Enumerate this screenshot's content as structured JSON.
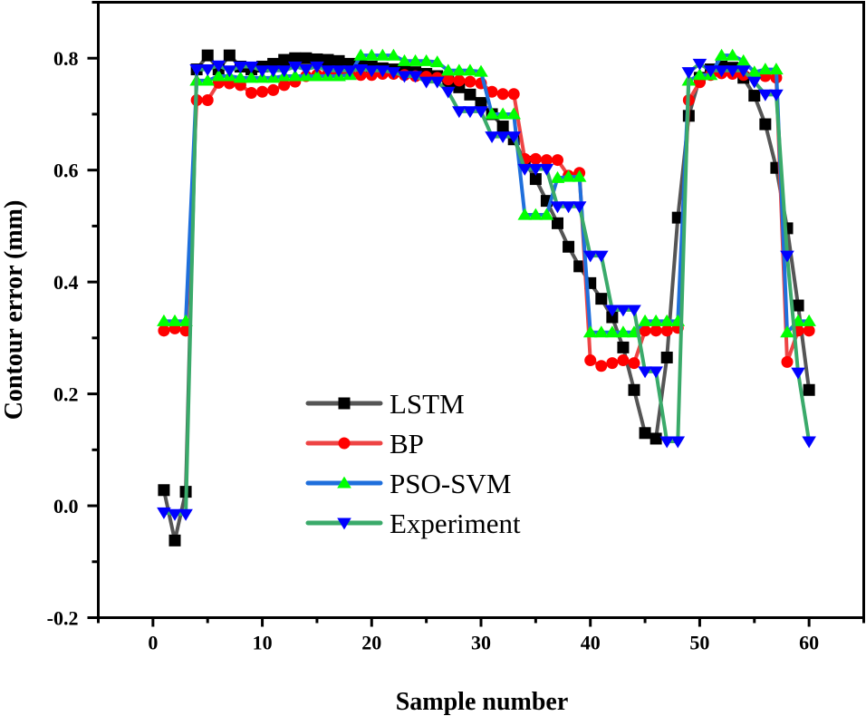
{
  "chart_data": {
    "type": "line",
    "title": "",
    "xlabel": "Sample number",
    "ylabel": "Contour error (mm)",
    "xlim": [
      -5,
      65
    ],
    "ylim": [
      -0.2,
      0.9
    ],
    "xticks": [
      0,
      10,
      20,
      30,
      40,
      50,
      60
    ],
    "xtick_labels": [
      "0",
      "10",
      "20",
      "30",
      "40",
      "50",
      "60"
    ],
    "yticks": [
      -0.2,
      0.0,
      0.2,
      0.4,
      0.6,
      0.8
    ],
    "ytick_labels": [
      "-0.2",
      "0.0",
      "0.2",
      "0.4",
      "0.6",
      "0.8"
    ],
    "grid": false,
    "legend_position": "lower-center",
    "x": [
      1,
      2,
      3,
      4,
      5,
      6,
      7,
      8,
      9,
      10,
      11,
      12,
      13,
      14,
      15,
      16,
      17,
      18,
      19,
      20,
      21,
      22,
      23,
      24,
      25,
      26,
      27,
      28,
      29,
      30,
      31,
      32,
      33,
      34,
      35,
      36,
      37,
      38,
      39,
      40,
      41,
      42,
      43,
      44,
      45,
      46,
      47,
      48,
      49,
      50,
      51,
      52,
      53,
      54,
      55,
      56,
      57,
      58,
      59,
      60
    ],
    "series": [
      {
        "name": "LSTM",
        "line_color": "#555555",
        "marker_color": "#000000",
        "marker": "square",
        "values": [
          0.028,
          -0.062,
          0.025,
          0.78,
          0.805,
          0.78,
          0.805,
          0.785,
          0.78,
          0.785,
          0.79,
          0.797,
          0.8,
          0.8,
          0.798,
          0.797,
          0.795,
          0.79,
          0.787,
          0.785,
          0.782,
          0.78,
          0.778,
          0.775,
          0.772,
          0.768,
          0.758,
          0.748,
          0.735,
          0.72,
          0.7,
          0.678,
          0.655,
          0.615,
          0.584,
          0.545,
          0.505,
          0.463,
          0.428,
          0.398,
          0.37,
          0.337,
          0.283,
          0.207,
          0.13,
          0.12,
          0.265,
          0.515,
          0.697,
          0.765,
          0.78,
          0.785,
          0.783,
          0.765,
          0.733,
          0.682,
          0.604,
          0.496,
          0.358,
          0.207
        ]
      },
      {
        "name": "BP",
        "line_color": "#ee4444",
        "marker_color": "#ff0000",
        "marker": "circle",
        "values": [
          0.313,
          0.317,
          0.313,
          0.725,
          0.725,
          0.756,
          0.755,
          0.752,
          0.738,
          0.74,
          0.743,
          0.752,
          0.758,
          0.768,
          0.77,
          0.772,
          0.773,
          0.772,
          0.77,
          0.77,
          0.772,
          0.772,
          0.77,
          0.768,
          0.767,
          0.765,
          0.762,
          0.76,
          0.758,
          0.755,
          0.74,
          0.736,
          0.736,
          0.62,
          0.62,
          0.618,
          0.618,
          0.59,
          0.595,
          0.26,
          0.25,
          0.255,
          0.26,
          0.255,
          0.313,
          0.313,
          0.313,
          0.318,
          0.725,
          0.757,
          0.77,
          0.773,
          0.772,
          0.77,
          0.768,
          0.768,
          0.765,
          0.257,
          0.313,
          0.313
        ]
      },
      {
        "name": "PSO-SVM",
        "line_color": "#1f6fdc",
        "marker_color": "#00ff00",
        "marker": "triangle-up",
        "values": [
          0.33,
          0.33,
          0.33,
          0.76,
          0.76,
          0.768,
          0.768,
          0.765,
          0.765,
          0.765,
          0.765,
          0.768,
          0.768,
          0.768,
          0.768,
          0.768,
          0.768,
          0.77,
          0.805,
          0.805,
          0.805,
          0.805,
          0.795,
          0.795,
          0.795,
          0.793,
          0.778,
          0.778,
          0.778,
          0.776,
          0.7,
          0.7,
          0.7,
          0.52,
          0.52,
          0.52,
          0.586,
          0.588,
          0.588,
          0.31,
          0.31,
          0.31,
          0.31,
          0.31,
          0.33,
          0.33,
          0.33,
          0.33,
          0.76,
          0.77,
          0.77,
          0.805,
          0.805,
          0.795,
          0.775,
          0.78,
          0.78,
          0.31,
          0.33,
          0.33
        ]
      },
      {
        "name": "Experiment",
        "line_color": "#3aaa6a",
        "marker_color": "#0000ff",
        "marker": "triangle-down",
        "values": [
          -0.012,
          -0.015,
          -0.015,
          0.78,
          0.78,
          0.787,
          0.778,
          0.785,
          0.785,
          0.778,
          0.778,
          0.778,
          0.785,
          0.78,
          0.785,
          0.778,
          0.778,
          0.778,
          0.78,
          0.778,
          0.778,
          0.775,
          0.768,
          0.768,
          0.758,
          0.758,
          0.74,
          0.705,
          0.705,
          0.705,
          0.66,
          0.66,
          0.66,
          0.602,
          0.602,
          0.602,
          0.535,
          0.535,
          0.535,
          0.447,
          0.447,
          0.35,
          0.35,
          0.35,
          0.24,
          0.24,
          0.115,
          0.115,
          0.775,
          0.79,
          0.778,
          0.778,
          0.778,
          0.778,
          0.758,
          0.735,
          0.735,
          0.447,
          0.238,
          0.115
        ]
      }
    ]
  }
}
